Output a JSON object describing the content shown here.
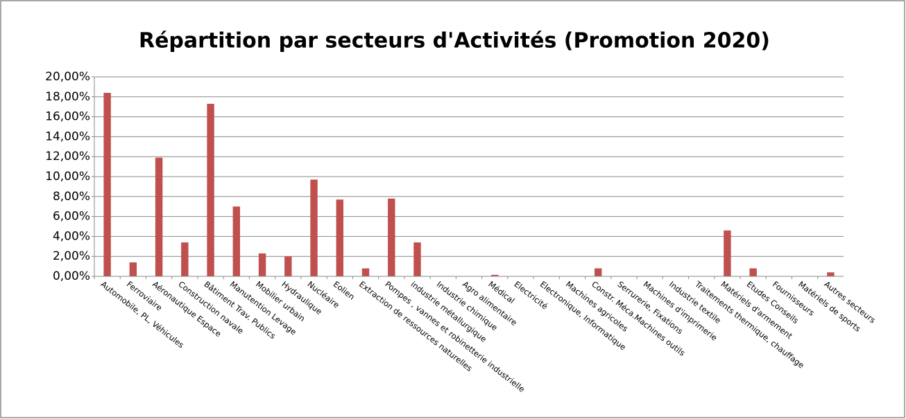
{
  "chart_data": {
    "type": "bar",
    "title": "Répartition par secteurs d'Activités (Promotion 2020)",
    "categories": [
      "Automobile, PL, Véhicules",
      "Ferroviaire",
      "Aéronautique Espace",
      "Construction navale",
      "Bâtiment Trav. Publics",
      "Manutention Levage",
      "Mobilier urbain",
      "Hydraulique",
      "Nucléaire",
      "Eolien",
      "Extraction de ressources naturelles",
      "Pompes , vannes et robinetterie industrielle",
      "industrie métallurgique",
      "Industrie chimique",
      "Agro alimentaire",
      "Médical",
      "Electricité",
      "Electronique, Informatique",
      "Machines agricoles",
      "Constr. Méca.Machines outils",
      "Serrurerie, Fixations",
      "Machines d'imprimerie",
      "Industrie textile",
      "Traitements thermique,  chauffage",
      "Matériels d'armement",
      "Etudes Conseils",
      "Fournisseurs",
      "Matériels de sports",
      "Autres secteurs"
    ],
    "values": [
      18.4,
      1.4,
      11.9,
      3.4,
      17.3,
      7.0,
      2.3,
      2.0,
      9.7,
      7.7,
      0.8,
      7.8,
      3.4,
      0,
      0,
      0.15,
      0,
      0,
      0,
      0.8,
      0,
      0,
      0,
      0,
      4.6,
      0.8,
      0,
      0,
      0.4
    ],
    "color": "#c0504d",
    "ylim": [
      0,
      20
    ],
    "yticks": [
      {
        "value": 0,
        "label": "0,00%"
      },
      {
        "value": 2,
        "label": "2,00%"
      },
      {
        "value": 4,
        "label": "4,00%"
      },
      {
        "value": 6,
        "label": "6,00%"
      },
      {
        "value": 8,
        "label": "8,00%"
      },
      {
        "value": 10,
        "label": "10,00%"
      },
      {
        "value": 12,
        "label": "12,00%"
      },
      {
        "value": 14,
        "label": "14,00%"
      },
      {
        "value": 16,
        "label": "16,00%"
      },
      {
        "value": 18,
        "label": "18,00%"
      },
      {
        "value": 20,
        "label": "20,00%"
      }
    ],
    "grid": true
  }
}
